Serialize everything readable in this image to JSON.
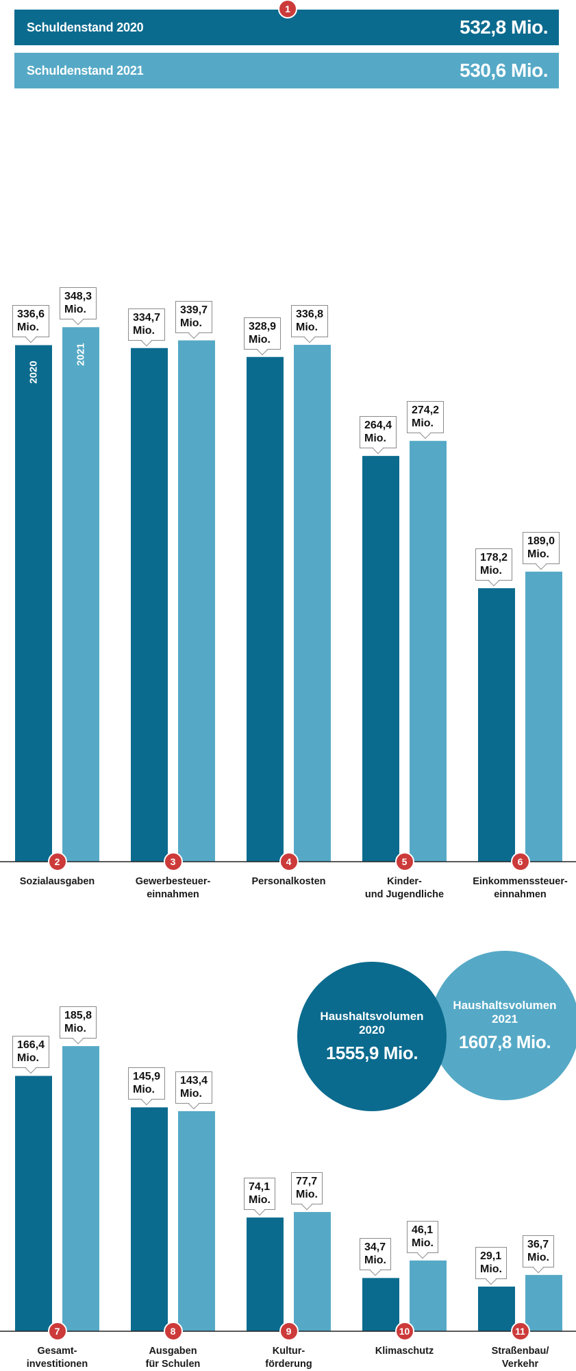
{
  "colors": {
    "y2020": "#0b6b8e",
    "y2021": "#55a9c6",
    "badge": "#cc3a3a",
    "axis": "#222222"
  },
  "debt": {
    "badge": "1",
    "items": [
      {
        "label": "Schuldenstand 2020",
        "value": "532,8 Mio."
      },
      {
        "label": "Schuldenstand 2021",
        "value": "530,6 Mio."
      }
    ]
  },
  "volume": {
    "items": [
      {
        "label": "Haushaltsvolumen\n2020",
        "value": "1555,9 Mio."
      },
      {
        "label": "Haushaltsvolumen\n2021",
        "value": "1607,8 Mio."
      }
    ]
  },
  "chart_data": [
    {
      "type": "bar",
      "categories": [
        "Sozialausgaben",
        "Gewerbesteuer-\neinnahmen",
        "Personalkosten",
        "Kinder-\nund Jugendliche",
        "Einkommenssteuer-\neinnahmen"
      ],
      "badges": [
        "2",
        "3",
        "4",
        "5",
        "6"
      ],
      "year_tags": [
        "2020",
        "2021"
      ],
      "series": [
        {
          "values": [
            336.6,
            334.7,
            328.9,
            264.4,
            178.2
          ],
          "labels": [
            "336,6\nMio.",
            "334,7\nMio.",
            "328,9\nMio.",
            "264,4\nMio.",
            "178,2\nMio."
          ]
        },
        {
          "values": [
            348.3,
            339.7,
            336.8,
            274.2,
            189.0
          ],
          "labels": [
            "348,3\nMio.",
            "339,7\nMio.",
            "336,8\nMio.",
            "274,2\nMio.",
            "189,0\nMio."
          ]
        }
      ],
      "units": "Mio."
    },
    {
      "type": "bar",
      "categories": [
        "Gesamt-\ninvestitionen",
        "Ausgaben\nfür Schulen",
        "Kultur-\nförderung",
        "Klimaschutz",
        "Straßenbau/\nVerkehr"
      ],
      "badges": [
        "7",
        "8",
        "9",
        "10",
        "11"
      ],
      "series": [
        {
          "values": [
            166.4,
            145.9,
            74.1,
            34.7,
            29.1
          ],
          "labels": [
            "166,4\nMio.",
            "145,9\nMio.",
            "74,1\nMio.",
            "34,7\nMio.",
            "29,1\nMio."
          ]
        },
        {
          "values": [
            185.8,
            143.4,
            77.7,
            46.1,
            36.7
          ],
          "labels": [
            "185,8\nMio.",
            "143,4\nMio.",
            "77,7\nMio.",
            "46,1\nMio.",
            "36,7\nMio."
          ]
        }
      ],
      "units": "Mio."
    }
  ]
}
